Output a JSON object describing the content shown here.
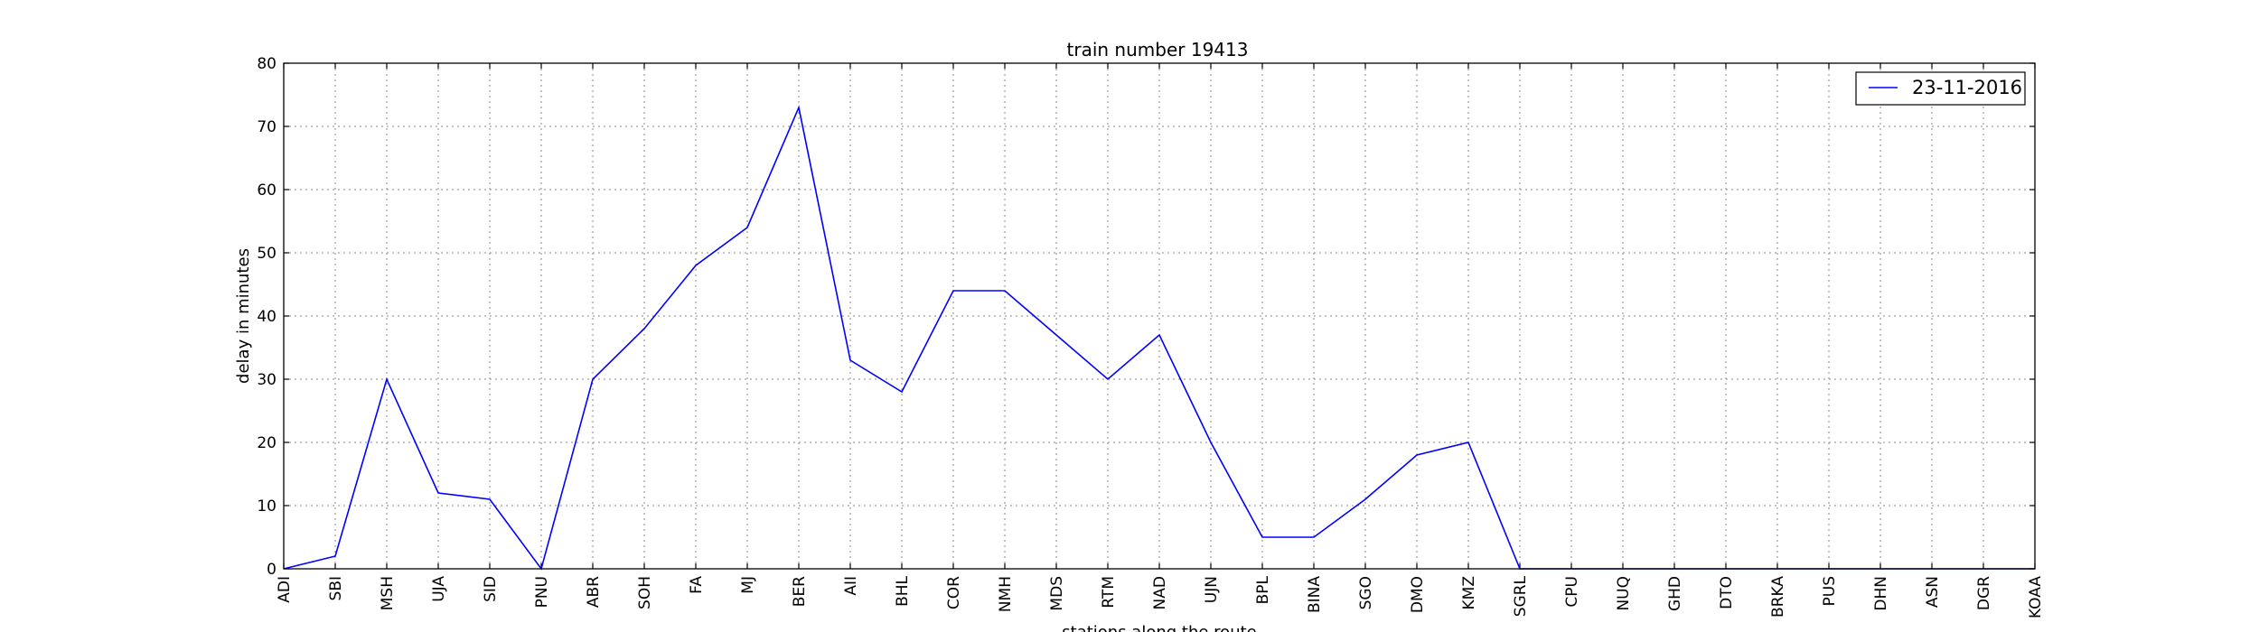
{
  "chart_data": {
    "type": "line",
    "title": "train number 19413",
    "xlabel": "stations along the route",
    "ylabel": "delay in minutes",
    "categories": [
      "ADI",
      "SBI",
      "MSH",
      "UJA",
      "SID",
      "PNU",
      "ABR",
      "SOH",
      "FA",
      "MJ",
      "BER",
      "AII",
      "BHL",
      "COR",
      "NMH",
      "MDS",
      "RTM",
      "NAD",
      "UJN",
      "BPL",
      "BINA",
      "SGO",
      "DMO",
      "KMZ",
      "SGRL",
      "CPU",
      "NUQ",
      "GHD",
      "DTO",
      "BRKA",
      "PUS",
      "DHN",
      "ASN",
      "DGR",
      "KOAA"
    ],
    "series": [
      {
        "name": "23-11-2016",
        "color": "#0000ff",
        "values": [
          0,
          2,
          30,
          12,
          11,
          0,
          30,
          38,
          48,
          54,
          73,
          33,
          28,
          44,
          44,
          37,
          30,
          37,
          20,
          5,
          5,
          11,
          18,
          20,
          0,
          0,
          0,
          0,
          0,
          0,
          0,
          0,
          0,
          0,
          0
        ]
      }
    ],
    "ylim": [
      0,
      80
    ],
    "yticks": [
      0,
      10,
      20,
      30,
      40,
      50,
      60,
      70,
      80
    ],
    "grid": true,
    "legend_position": "top-right"
  }
}
